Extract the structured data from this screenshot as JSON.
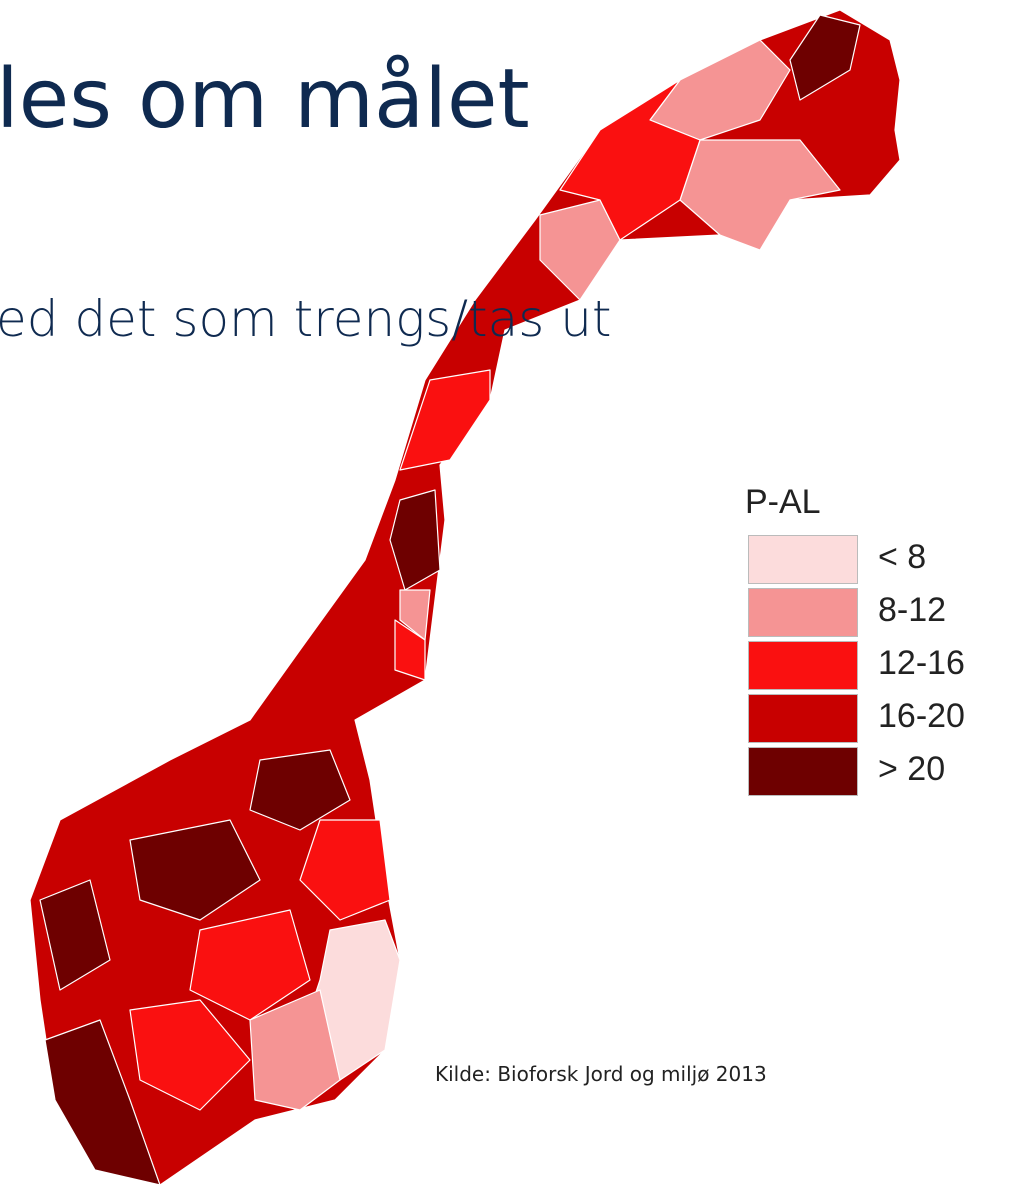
{
  "title": "les om målet",
  "subtitle": "ed det som trengs/tas ut",
  "legend": {
    "title": "P-AL",
    "items": [
      {
        "label": "< 8",
        "color": "#fcdcdc"
      },
      {
        "label": "8-12",
        "color": "#f59494"
      },
      {
        "label": "12-16",
        "color": "#fa1010"
      },
      {
        "label": "16-20",
        "color": "#c80000"
      },
      {
        "label": "> 20",
        "color": "#6e0000"
      }
    ]
  },
  "source": "Kilde: Bioforsk Jord og miljø 2013"
}
